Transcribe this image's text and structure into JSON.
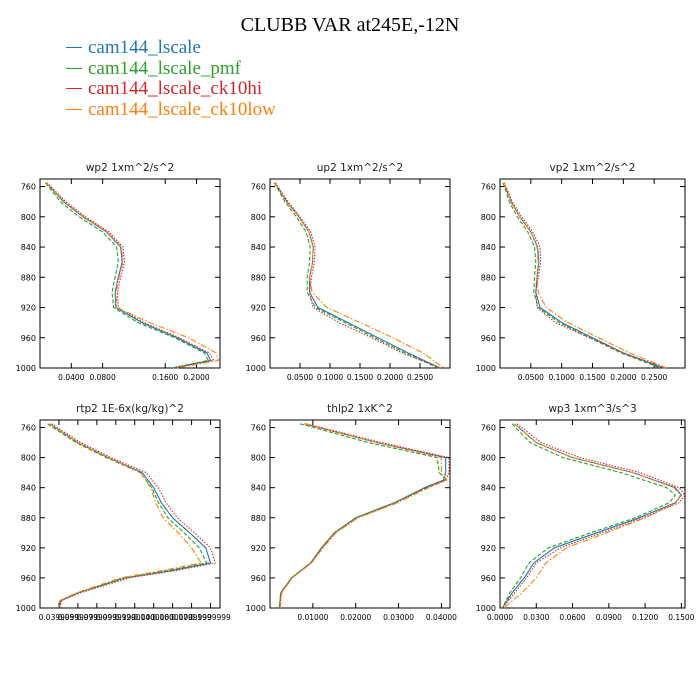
{
  "page_title": "CLUBB VAR at245E,-12N",
  "legend": [
    {
      "label": "cam144_lscale",
      "color": "#1f77b4"
    },
    {
      "label": "cam144_lscale_pmf",
      "color": "#2ca02c"
    },
    {
      "label": "cam144_lscale_ck10hi",
      "color": "#d62728"
    },
    {
      "label": "cam144_lscale_ck10low",
      "color": "#ff7f0e"
    }
  ],
  "chart_data": [
    {
      "type": "line",
      "title": "wp2  1xm^2/s^2",
      "xlim": [
        0.0,
        0.23
      ],
      "ylim": [
        1000,
        750
      ],
      "xticks": [
        0.04,
        0.08,
        0.16,
        0.2
      ],
      "xtick_labels": [
        "0.0400",
        "0.0800",
        "0.1600",
        "0.2000"
      ],
      "yticks": [
        760,
        800,
        840,
        880,
        920,
        960,
        1000
      ],
      "ytick_labels": [
        "760",
        "800",
        "840",
        "880",
        "920",
        "960",
        "1000"
      ],
      "y": [
        755,
        780,
        800,
        820,
        840,
        860,
        880,
        900,
        920,
        940,
        960,
        980,
        990,
        1000
      ],
      "series": [
        {
          "name": "cam144_lscale",
          "color": "#1f77b4",
          "style": "solid",
          "x": [
            0.008,
            0.03,
            0.055,
            0.085,
            0.103,
            0.105,
            0.1,
            0.096,
            0.097,
            0.13,
            0.175,
            0.213,
            0.218,
            0.17
          ]
        },
        {
          "name": "cam144_lscale_pmf",
          "color": "#2ca02c",
          "style": "dash",
          "x": [
            0.007,
            0.026,
            0.05,
            0.08,
            0.098,
            0.1,
            0.096,
            0.092,
            0.094,
            0.125,
            0.172,
            0.21,
            0.215,
            0.168
          ]
        },
        {
          "name": "cam144_lscale_ck10hi",
          "color": "#d62728",
          "style": "dot",
          "x": [
            0.009,
            0.033,
            0.058,
            0.088,
            0.106,
            0.108,
            0.103,
            0.099,
            0.1,
            0.133,
            0.178,
            0.216,
            0.222,
            0.172
          ]
        },
        {
          "name": "cam144_lscale_ck10low",
          "color": "#ff7f0e",
          "style": "dashdot",
          "x": [
            0.008,
            0.031,
            0.056,
            0.086,
            0.104,
            0.106,
            0.101,
            0.097,
            0.098,
            0.14,
            0.19,
            0.225,
            0.228,
            0.175
          ]
        }
      ]
    },
    {
      "type": "line",
      "title": "up2  1xm^2/s^2",
      "xlim": [
        0.0,
        0.3
      ],
      "ylim": [
        1000,
        750
      ],
      "xticks": [
        0.05,
        0.1,
        0.15,
        0.2,
        0.25
      ],
      "xtick_labels": [
        "0.0500",
        "0.1000",
        "0.1500",
        "0.2000",
        "0.2500"
      ],
      "yticks": [
        760,
        800,
        840,
        880,
        920,
        960,
        1000
      ],
      "ytick_labels": [
        "760",
        "800",
        "840",
        "880",
        "920",
        "960",
        "1000"
      ],
      "y": [
        755,
        780,
        800,
        820,
        840,
        860,
        880,
        900,
        920,
        940,
        960,
        980,
        1000
      ],
      "series": [
        {
          "name": "cam144_lscale",
          "color": "#1f77b4",
          "style": "solid",
          "x": [
            0.008,
            0.028,
            0.048,
            0.065,
            0.072,
            0.071,
            0.066,
            0.066,
            0.08,
            0.13,
            0.18,
            0.23,
            0.283
          ]
        },
        {
          "name": "cam144_lscale_pmf",
          "color": "#2ca02c",
          "style": "dash",
          "x": [
            0.007,
            0.025,
            0.044,
            0.06,
            0.067,
            0.066,
            0.062,
            0.062,
            0.076,
            0.125,
            0.175,
            0.225,
            0.28
          ]
        },
        {
          "name": "cam144_lscale_ck10hi",
          "color": "#d62728",
          "style": "dot",
          "x": [
            0.009,
            0.03,
            0.05,
            0.068,
            0.075,
            0.074,
            0.069,
            0.066,
            0.072,
            0.115,
            0.17,
            0.22,
            0.285
          ]
        },
        {
          "name": "cam144_lscale_ck10low",
          "color": "#ff7f0e",
          "style": "dashdot",
          "x": [
            0.008,
            0.028,
            0.048,
            0.065,
            0.072,
            0.071,
            0.066,
            0.07,
            0.095,
            0.15,
            0.205,
            0.255,
            0.29
          ]
        }
      ]
    },
    {
      "type": "line",
      "title": "vp2  1xm^2/s^2",
      "xlim": [
        0.0,
        0.3
      ],
      "ylim": [
        1000,
        750
      ],
      "xticks": [
        0.05,
        0.1,
        0.15,
        0.2,
        0.25
      ],
      "xtick_labels": [
        "0.0500",
        "0.1000",
        "0.1500",
        "0.2000",
        "0.2500"
      ],
      "yticks": [
        760,
        800,
        840,
        880,
        920,
        960,
        1000
      ],
      "ytick_labels": [
        "760",
        "800",
        "840",
        "880",
        "920",
        "960",
        "1000"
      ],
      "y": [
        755,
        780,
        800,
        820,
        840,
        860,
        880,
        900,
        920,
        940,
        960,
        980,
        1000
      ],
      "series": [
        {
          "name": "cam144_lscale",
          "color": "#1f77b4",
          "style": "solid",
          "x": [
            0.006,
            0.018,
            0.032,
            0.05,
            0.061,
            0.063,
            0.06,
            0.058,
            0.065,
            0.1,
            0.15,
            0.2,
            0.265
          ]
        },
        {
          "name": "cam144_lscale_pmf",
          "color": "#2ca02c",
          "style": "dash",
          "x": [
            0.005,
            0.015,
            0.028,
            0.045,
            0.056,
            0.058,
            0.056,
            0.055,
            0.062,
            0.096,
            0.146,
            0.196,
            0.26
          ]
        },
        {
          "name": "cam144_lscale_ck10hi",
          "color": "#d62728",
          "style": "dot",
          "x": [
            0.007,
            0.02,
            0.035,
            0.053,
            0.065,
            0.066,
            0.062,
            0.058,
            0.06,
            0.09,
            0.145,
            0.2,
            0.268
          ]
        },
        {
          "name": "cam144_lscale_ck10low",
          "color": "#ff7f0e",
          "style": "dashdot",
          "x": [
            0.006,
            0.018,
            0.032,
            0.05,
            0.06,
            0.062,
            0.06,
            0.062,
            0.075,
            0.11,
            0.16,
            0.21,
            0.27
          ]
        }
      ]
    },
    {
      "type": "line",
      "title": "rtp2  1E-6x(kg/kg)^2",
      "xlim": [
        0.02,
        0.21
      ],
      "ylim": [
        1000,
        750
      ],
      "xticks": [
        0.04,
        0.06,
        0.08,
        0.1,
        0.12,
        0.14,
        0.16,
        0.18,
        0.2
      ],
      "xtick_labels": [
        "0.0399999",
        "0.0599999",
        "0.0799999",
        "0.0999999",
        "0.1200000",
        "0.1400000",
        "0.1600000",
        "0.1799999",
        "0.1999999"
      ],
      "yticks": [
        760,
        800,
        840,
        880,
        920,
        960,
        1000
      ],
      "ytick_labels": [
        "760",
        "800",
        "840",
        "880",
        "920",
        "960",
        "1000"
      ],
      "y": [
        755,
        780,
        800,
        820,
        840,
        860,
        880,
        900,
        920,
        940,
        950,
        960,
        980,
        990,
        1000
      ],
      "series": [
        {
          "name": "cam144_lscale",
          "color": "#1f77b4",
          "style": "solid",
          "x": [
            0.03,
            0.06,
            0.092,
            0.128,
            0.14,
            0.148,
            0.16,
            0.178,
            0.195,
            0.2,
            0.16,
            0.11,
            0.06,
            0.042,
            0.04
          ]
        },
        {
          "name": "cam144_lscale_pmf",
          "color": "#2ca02c",
          "style": "dash",
          "x": [
            0.028,
            0.058,
            0.09,
            0.126,
            0.138,
            0.145,
            0.155,
            0.172,
            0.188,
            0.196,
            0.156,
            0.108,
            0.06,
            0.042,
            0.04
          ]
        },
        {
          "name": "cam144_lscale_ck10hi",
          "color": "#d62728",
          "style": "dot",
          "x": [
            0.032,
            0.063,
            0.095,
            0.132,
            0.145,
            0.153,
            0.165,
            0.183,
            0.2,
            0.205,
            0.164,
            0.114,
            0.062,
            0.043,
            0.041
          ]
        },
        {
          "name": "cam144_lscale_ck10low",
          "color": "#ff7f0e",
          "style": "dashdot",
          "x": [
            0.03,
            0.06,
            0.092,
            0.126,
            0.137,
            0.142,
            0.15,
            0.166,
            0.18,
            0.19,
            0.15,
            0.105,
            0.058,
            0.041,
            0.039
          ]
        }
      ]
    },
    {
      "type": "line",
      "title": "thlp2  1xK^2",
      "xlim": [
        0.0,
        0.042
      ],
      "ylim": [
        1000,
        750
      ],
      "xticks": [
        0.01,
        0.02,
        0.03,
        0.04
      ],
      "xtick_labels": [
        "0.01000",
        "0.02000",
        "0.03000",
        "0.04000"
      ],
      "yticks": [
        760,
        800,
        840,
        880,
        920,
        960,
        1000
      ],
      "ytick_labels": [
        "760",
        "800",
        "840",
        "880",
        "920",
        "960",
        "1000"
      ],
      "y": [
        755,
        780,
        800,
        820,
        830,
        840,
        860,
        880,
        900,
        920,
        940,
        960,
        980,
        1000
      ],
      "series": [
        {
          "name": "cam144_lscale",
          "color": "#1f77b4",
          "style": "solid",
          "x": [
            0.008,
            0.025,
            0.041,
            0.041,
            0.0405,
            0.036,
            0.029,
            0.02,
            0.015,
            0.012,
            0.0095,
            0.005,
            0.0025,
            0.0022
          ]
        },
        {
          "name": "cam144_lscale_pmf",
          "color": "#2ca02c",
          "style": "dash",
          "x": [
            0.007,
            0.023,
            0.039,
            0.0395,
            0.041,
            0.0365,
            0.029,
            0.02,
            0.015,
            0.012,
            0.0095,
            0.005,
            0.0025,
            0.0022
          ]
        },
        {
          "name": "cam144_lscale_ck10hi",
          "color": "#d62728",
          "style": "dot",
          "x": [
            0.0085,
            0.026,
            0.0418,
            0.0418,
            0.041,
            0.0365,
            0.0295,
            0.0205,
            0.0152,
            0.0122,
            0.0096,
            0.0051,
            0.0026,
            0.0023
          ]
        },
        {
          "name": "cam144_lscale_ck10low",
          "color": "#ff7f0e",
          "style": "dashdot",
          "x": [
            0.008,
            0.025,
            0.04,
            0.04,
            0.0412,
            0.037,
            0.0298,
            0.0205,
            0.0154,
            0.0124,
            0.0097,
            0.0052,
            0.0027,
            0.0024
          ]
        }
      ]
    },
    {
      "type": "line",
      "title": "wp3  1xm^3/s^3",
      "xlim": [
        0.0,
        0.153
      ],
      "ylim": [
        1000,
        750
      ],
      "xticks": [
        0.0,
        0.03,
        0.06,
        0.09,
        0.12,
        0.15
      ],
      "xtick_labels": [
        "0.0000",
        "0.0300",
        "0.0600",
        "0.0900",
        "0.1200",
        "0.1500"
      ],
      "yticks": [
        760,
        800,
        840,
        880,
        920,
        960,
        1000
      ],
      "ytick_labels": [
        "760",
        "800",
        "840",
        "880",
        "920",
        "960",
        "1000"
      ],
      "y": [
        755,
        780,
        800,
        820,
        840,
        850,
        860,
        880,
        900,
        920,
        940,
        960,
        980,
        1000
      ],
      "series": [
        {
          "name": "cam144_lscale",
          "color": "#1f77b4",
          "style": "solid",
          "x": [
            0.012,
            0.03,
            0.06,
            0.11,
            0.145,
            0.15,
            0.145,
            0.115,
            0.08,
            0.045,
            0.028,
            0.02,
            0.01,
            0.002
          ]
        },
        {
          "name": "cam144_lscale_pmf",
          "color": "#2ca02c",
          "style": "dash",
          "x": [
            0.01,
            0.025,
            0.052,
            0.1,
            0.138,
            0.145,
            0.14,
            0.112,
            0.075,
            0.04,
            0.024,
            0.017,
            0.008,
            0.002
          ]
        },
        {
          "name": "cam144_lscale_ck10hi",
          "color": "#d62728",
          "style": "dot",
          "x": [
            0.014,
            0.034,
            0.066,
            0.116,
            0.148,
            0.153,
            0.148,
            0.118,
            0.084,
            0.05,
            0.03,
            0.022,
            0.012,
            0.002
          ]
        },
        {
          "name": "cam144_lscale_ck10low",
          "color": "#ff7f0e",
          "style": "dashdot",
          "x": [
            0.012,
            0.03,
            0.06,
            0.11,
            0.144,
            0.149,
            0.146,
            0.12,
            0.088,
            0.055,
            0.038,
            0.03,
            0.018,
            0.003
          ]
        }
      ]
    }
  ]
}
